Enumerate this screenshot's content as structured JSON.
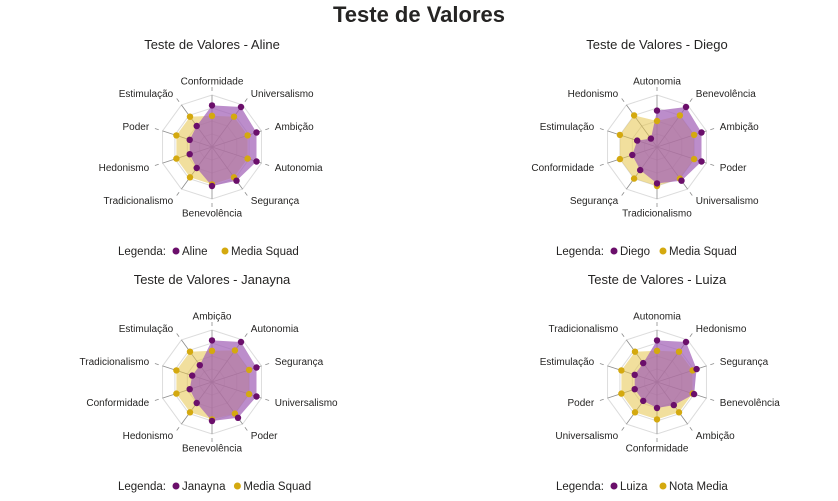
{
  "page_title": "Teste de Valores",
  "colors": {
    "primary": "#6b0f6b",
    "primary_fill": "#a05cb5",
    "secondary": "#d4a90f",
    "secondary_fill": "#e6c44d",
    "grid": "#dcdcdc",
    "spoke": "#8c8c8c"
  },
  "chart_data": [
    {
      "type": "radar",
      "title": "Teste de Valores - Aline",
      "categories": [
        "Conformidade",
        "Universalismo",
        "Ambição",
        "Autonomia",
        "Segurança",
        "Benevolência",
        "Tradicionalismo",
        "Hedonismo",
        "Poder",
        "Estimulação"
      ],
      "series": [
        {
          "name": "Aline",
          "values": [
            0.8,
            0.95,
            0.9,
            0.9,
            0.8,
            0.75,
            0.5,
            0.45,
            0.45,
            0.5
          ]
        },
        {
          "name": "Media Squad",
          "values": [
            0.6,
            0.72,
            0.72,
            0.72,
            0.72,
            0.72,
            0.72,
            0.72,
            0.72,
            0.72
          ]
        }
      ],
      "legend_label": "Legenda:"
    },
    {
      "type": "radar",
      "title": "Teste de Valores - Diego",
      "categories": [
        "Autonomia",
        "Benevolência",
        "Ambição",
        "Poder",
        "Universalismo",
        "Tradicionalismo",
        "Segurança",
        "Conformidade",
        "Estimulação",
        "Hedonismo"
      ],
      "series": [
        {
          "name": "Diego",
          "values": [
            0.7,
            0.95,
            0.9,
            0.9,
            0.8,
            0.7,
            0.55,
            0.5,
            0.4,
            0.2
          ]
        },
        {
          "name": "Media Squad",
          "values": [
            0.5,
            0.75,
            0.75,
            0.75,
            0.75,
            0.75,
            0.75,
            0.75,
            0.75,
            0.75
          ]
        }
      ],
      "legend_label": "Legenda:"
    },
    {
      "type": "radar",
      "title": "Teste de Valores - Janayna",
      "categories": [
        "Ambição",
        "Autonomia",
        "Segurança",
        "Universalismo",
        "Poder",
        "Benevolência",
        "Hedonismo",
        "Conformidade",
        "Tradicionalismo",
        "Estimulação"
      ],
      "series": [
        {
          "name": "Janayna",
          "values": [
            0.8,
            0.95,
            0.9,
            0.9,
            0.85,
            0.75,
            0.5,
            0.45,
            0.4,
            0.4
          ]
        },
        {
          "name": "Media Squad",
          "values": [
            0.6,
            0.75,
            0.75,
            0.75,
            0.75,
            0.72,
            0.72,
            0.72,
            0.72,
            0.72
          ]
        }
      ],
      "legend_label": "Legenda:"
    },
    {
      "type": "radar",
      "title": "Teste de Valores - Luiza",
      "categories": [
        "Autonomia",
        "Hedonismo",
        "Segurança",
        "Benevolência",
        "Ambição",
        "Conformidade",
        "Universalismo",
        "Poder",
        "Estimulação",
        "Tradicionalismo"
      ],
      "series": [
        {
          "name": "Luiza",
          "values": [
            0.8,
            0.95,
            0.8,
            0.75,
            0.55,
            0.5,
            0.45,
            0.45,
            0.45,
            0.45
          ]
        },
        {
          "name": "Nota Media",
          "values": [
            0.6,
            0.72,
            0.72,
            0.72,
            0.72,
            0.72,
            0.72,
            0.72,
            0.72,
            0.72
          ]
        }
      ],
      "legend_label": "Legenda:"
    }
  ]
}
